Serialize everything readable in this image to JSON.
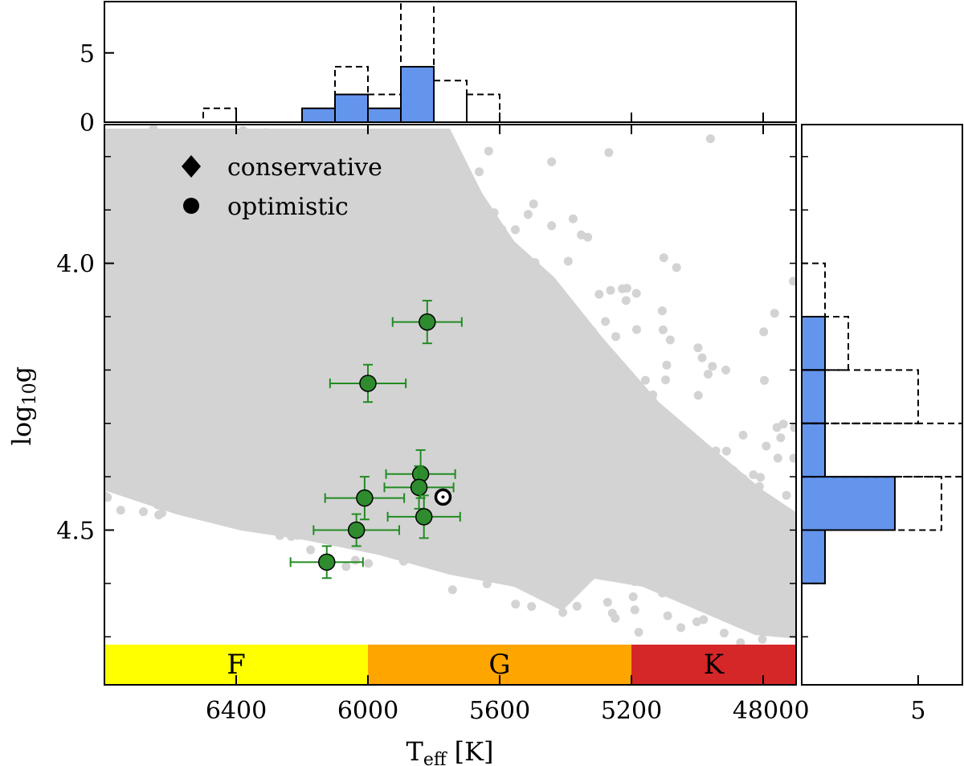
{
  "chart_data": [
    {
      "id": "main",
      "type": "scatter",
      "xlabel": "T",
      "xlabel_sub": "eff",
      "xlabel_unit": " [K]",
      "ylabel": "log",
      "ylabel_sub": "10",
      "ylabel_tail": "g",
      "xlim": [
        6800,
        4700
      ],
      "ylim": [
        3.74,
        4.79
      ],
      "x_ticks": [
        6400,
        6000,
        5600,
        5200,
        4800
      ],
      "x_tick_labels": [
        "6400",
        "6000",
        "5600",
        "5200",
        "4800"
      ],
      "y_ticks": [
        4.0,
        4.5
      ],
      "y_tick_labels": [
        "4.0",
        "4.5"
      ],
      "legend": [
        {
          "marker": "diamond",
          "label": "conservative"
        },
        {
          "marker": "circle",
          "label": "optimistic"
        }
      ],
      "background": {
        "name": "stellar sample",
        "color": "#d3d3d3"
      },
      "optimistic_points": [
        {
          "teff": 5820,
          "logg": 4.11,
          "teff_err": 105,
          "logg_err": 0.04
        },
        {
          "teff": 6000,
          "logg": 4.225,
          "teff_err": 115,
          "logg_err": 0.035
        },
        {
          "teff": 5840,
          "logg": 4.395,
          "teff_err": 105,
          "logg_err": 0.045
        },
        {
          "teff": 5845,
          "logg": 4.42,
          "teff_err": 105,
          "logg_err": 0.04
        },
        {
          "teff": 6010,
          "logg": 4.44,
          "teff_err": 120,
          "logg_err": 0.04
        },
        {
          "teff": 5830,
          "logg": 4.475,
          "teff_err": 110,
          "logg_err": 0.04
        },
        {
          "teff": 6035,
          "logg": 4.5,
          "teff_err": 130,
          "logg_err": 0.03
        },
        {
          "teff": 6125,
          "logg": 4.56,
          "teff_err": 110,
          "logg_err": 0.03
        }
      ],
      "sun": {
        "teff": 5772,
        "logg": 4.438
      },
      "spectral_bands": [
        {
          "label": "F",
          "from": 6800,
          "to": 6000,
          "color": "#ffff00"
        },
        {
          "label": "G",
          "from": 6000,
          "to": 5200,
          "color": "#ffa500"
        },
        {
          "label": "K",
          "from": 5200,
          "to": 4700,
          "color": "#d62728"
        }
      ]
    },
    {
      "id": "top_histogram",
      "type": "bar",
      "orientation": "vertical",
      "xlim": [
        6800,
        4700
      ],
      "ylim": [
        0,
        8.7
      ],
      "y_ticks": [
        0,
        5
      ],
      "y_tick_labels": [
        "0",
        "5"
      ],
      "bin_edges": [
        6500,
        6400,
        6300,
        6200,
        6100,
        6000,
        5900,
        5800,
        5700,
        5600
      ],
      "series": [
        {
          "name": "optimistic",
          "style": "filled",
          "color": "#6495ed",
          "values": [
            0,
            0,
            0,
            1,
            2,
            1,
            4,
            0,
            0
          ]
        },
        {
          "name": "all",
          "style": "dashed",
          "color": "#000000",
          "values": [
            1,
            0,
            0,
            0,
            4,
            2,
            9,
            3,
            2
          ]
        }
      ]
    },
    {
      "id": "right_histogram",
      "type": "bar",
      "orientation": "horizontal",
      "xlim": [
        0,
        6.9
      ],
      "ylim": [
        3.74,
        4.79
      ],
      "x_ticks": [
        0,
        5
      ],
      "x_tick_labels": [
        "0",
        "5"
      ],
      "bin_edges": [
        4.0,
        4.1,
        4.2,
        4.3,
        4.4,
        4.5,
        4.6
      ],
      "series": [
        {
          "name": "optimistic",
          "style": "filled",
          "color": "#6495ed",
          "values": [
            0,
            1,
            1,
            1,
            4,
            1
          ]
        },
        {
          "name": "all",
          "style": "dashed",
          "color": "#000000",
          "values": [
            1,
            2,
            5,
            7,
            6,
            1
          ]
        }
      ]
    }
  ]
}
